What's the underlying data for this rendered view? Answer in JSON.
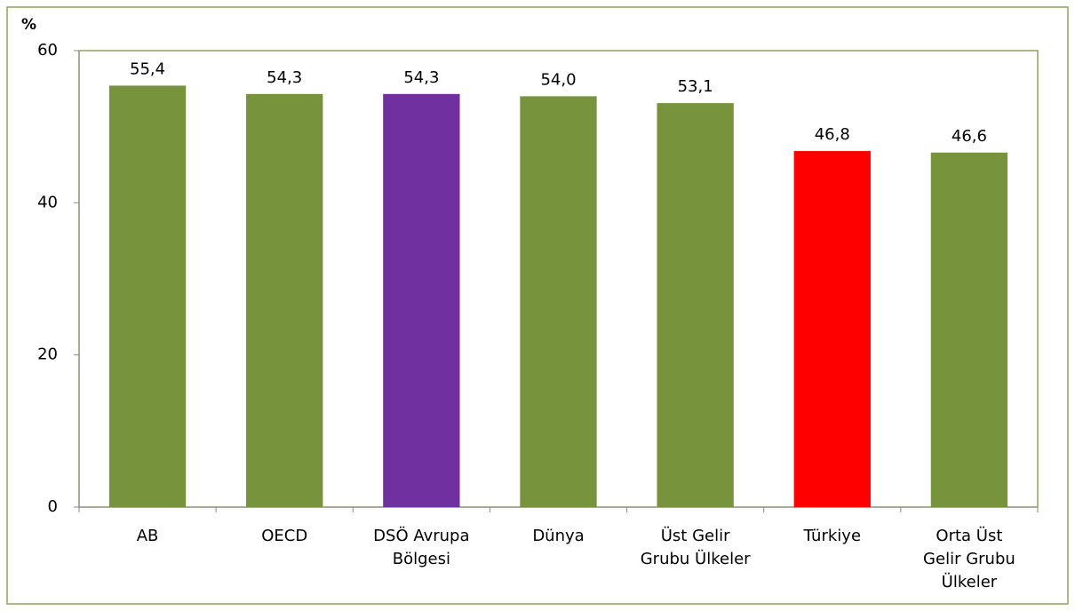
{
  "chart_data": {
    "type": "bar",
    "y_label": "%",
    "categories": [
      "AB",
      "OECD",
      "DSÖ Avrupa\nBölgesi",
      "Dünya",
      "Üst Gelir\nGrubu Ülkeler",
      "Türkiye",
      "Orta Üst\nGelir Grubu\nÜlkeler"
    ],
    "values": [
      55.4,
      54.3,
      54.3,
      54.0,
      53.1,
      46.8,
      46.6
    ],
    "value_labels": [
      "55,4",
      "54,3",
      "54,3",
      "54,0",
      "53,1",
      "46,8",
      "46,6"
    ],
    "colors": [
      "#77933c",
      "#77933c",
      "#7030a0",
      "#77933c",
      "#77933c",
      "#ff0000",
      "#77933c"
    ],
    "ylim": [
      0,
      60
    ],
    "yticks": [
      0,
      20,
      40,
      60
    ],
    "grid": false
  }
}
